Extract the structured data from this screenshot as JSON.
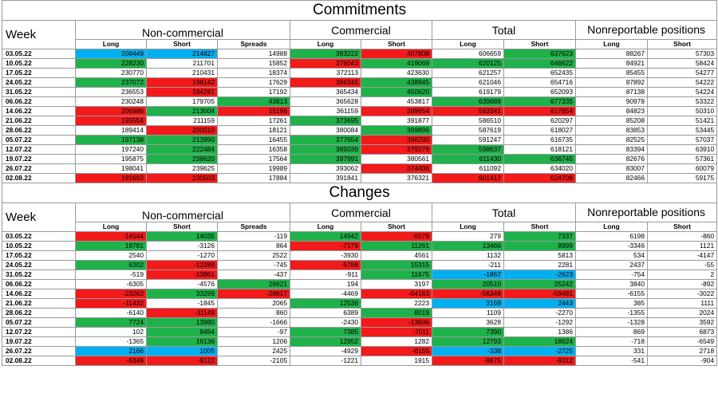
{
  "commitments": {
    "title": "Commitments",
    "headers": {
      "week": "Week",
      "noncommercial": "Non-commercial",
      "commercial": "Commercial",
      "total": "Total",
      "nonreportable": "Nonreportable positions",
      "long": "Long",
      "short": "Short",
      "spreads": "Spreads"
    },
    "rows": [
      {
        "week": "03.05.22",
        "nc_long": "208449",
        "nc_short": "214827",
        "spreads": "14988",
        "c_long": "383222",
        "c_short": "407808",
        "t_long": "606659",
        "t_short": "637623",
        "nr_long": "88267",
        "nr_short": "57303"
      },
      {
        "week": "10.05.22",
        "nc_long": "228230",
        "nc_short": "211701",
        "spreads": "15852",
        "c_long": "376043",
        "c_short": "419069",
        "t_long": "620125",
        "t_short": "646622",
        "nr_long": "84921",
        "nr_short": "58424"
      },
      {
        "week": "17.05.22",
        "nc_long": "230770",
        "nc_short": "210431",
        "spreads": "18374",
        "c_long": "372113",
        "c_short": "423630",
        "t_long": "621257",
        "t_short": "652435",
        "nr_long": "85455",
        "nr_short": "54277"
      },
      {
        "week": "24.05.22",
        "nc_long": "237072",
        "nc_short": "198142",
        "spreads": "17629",
        "c_long": "366345",
        "c_short": "438945",
        "t_long": "621046",
        "t_short": "654716",
        "nr_long": "87892",
        "nr_short": "54222"
      },
      {
        "week": "31.05.22",
        "nc_long": "236553",
        "nc_short": "184281",
        "spreads": "17192",
        "c_long": "365434",
        "c_short": "450620",
        "t_long": "619179",
        "t_short": "652093",
        "nr_long": "87138",
        "nr_short": "54224"
      },
      {
        "week": "06.06.22",
        "nc_long": "230248",
        "nc_short": "179705",
        "spreads": "43813",
        "c_long": "365628",
        "c_short": "453817",
        "t_long": "639689",
        "t_short": "677335",
        "nr_long": "90978",
        "nr_short": "53322"
      },
      {
        "week": "14.06.22",
        "nc_long": "206986",
        "nc_short": "213004",
        "spreads": "15196",
        "c_long": "361159",
        "c_short": "389654",
        "t_long": "583341",
        "t_short": "617854",
        "nr_long": "84823",
        "nr_short": "50310"
      },
      {
        "week": "21.06.22",
        "nc_long": "195554",
        "nc_short": "211159",
        "spreads": "17261",
        "c_long": "373695",
        "c_short": "391877",
        "t_long": "586510",
        "t_short": "620297",
        "nr_long": "85208",
        "nr_short": "51421"
      },
      {
        "week": "28.06.22",
        "nc_long": "189414",
        "nc_short": "200010",
        "spreads": "18121",
        "c_long": "380084",
        "c_short": "399896",
        "t_long": "587619",
        "t_short": "618027",
        "nr_long": "83853",
        "nr_short": "53445"
      },
      {
        "week": "05.07.22",
        "nc_long": "197138",
        "nc_short": "213990",
        "spreads": "16455",
        "c_long": "377654",
        "c_short": "386290",
        "t_long": "591247",
        "t_short": "616735",
        "nr_long": "82525",
        "nr_short": "57037"
      },
      {
        "week": "12.07.22",
        "nc_long": "197240",
        "nc_short": "222484",
        "spreads": "16358",
        "c_long": "385039",
        "c_short": "379279",
        "t_long": "598637",
        "t_short": "618121",
        "nr_long": "83394",
        "nr_short": "63910"
      },
      {
        "week": "19.07.22",
        "nc_long": "195875",
        "nc_short": "238620",
        "spreads": "17564",
        "c_long": "397991",
        "c_short": "380561",
        "t_long": "611430",
        "t_short": "636745",
        "nr_long": "82676",
        "nr_short": "57361"
      },
      {
        "week": "26.07.22",
        "nc_long": "198041",
        "nc_short": "239625",
        "spreads": "19989",
        "c_long": "393062",
        "c_short": "374406",
        "t_long": "611092",
        "t_short": "634020",
        "nr_long": "83007",
        "nr_short": "60079"
      },
      {
        "week": "02.08.22",
        "nc_long": "191692",
        "nc_short": "230503",
        "spreads": "17884",
        "c_long": "391841",
        "c_short": "376321",
        "t_long": "601417",
        "t_short": "624708",
        "nr_long": "82466",
        "nr_short": "59175"
      }
    ]
  },
  "changes": {
    "title": "Changes",
    "rows": [
      {
        "week": "03.05.22",
        "nc_long": "-14544",
        "nc_short": "14035",
        "spreads": "-119",
        "c_long": "14942",
        "c_short": "-6579",
        "t_long": "279",
        "t_short": "7337",
        "nr_long": "6198",
        "nr_short": "-860"
      },
      {
        "week": "10.05.22",
        "nc_long": "19781",
        "nc_short": "-3126",
        "spreads": "864",
        "c_long": "-7179",
        "c_short": "11261",
        "t_long": "13466",
        "t_short": "8999",
        "nr_long": "-3346",
        "nr_short": "1121"
      },
      {
        "week": "17.05.22",
        "nc_long": "2540",
        "nc_short": "-1270",
        "spreads": "2522",
        "c_long": "-3930",
        "c_short": "4561",
        "t_long": "1132",
        "t_short": "5813",
        "nr_long": "534",
        "nr_short": "-4147"
      },
      {
        "week": "24.05.22",
        "nc_long": "6302",
        "nc_short": "-12289",
        "spreads": "-745",
        "c_long": "-5768",
        "c_short": "15315",
        "t_long": "-211",
        "t_short": "2281",
        "nr_long": "2437",
        "nr_short": "-55"
      },
      {
        "week": "31.05.22",
        "nc_long": "-519",
        "nc_short": "-13861",
        "spreads": "-437",
        "c_long": "-911",
        "c_short": "11675",
        "t_long": "-1867",
        "t_short": "-2623",
        "nr_long": "-754",
        "nr_short": "2"
      },
      {
        "week": "06.06.22",
        "nc_long": "-6305",
        "nc_short": "-4576",
        "spreads": "26621",
        "c_long": "194",
        "c_short": "3197",
        "t_long": "20510",
        "t_short": "25242",
        "nr_long": "3840",
        "nr_short": "-892"
      },
      {
        "week": "14.06.22",
        "nc_long": "-23262",
        "nc_short": "33299",
        "spreads": "-28617",
        "c_long": "-4469",
        "c_short": "-64163",
        "t_long": "-56348",
        "t_short": "-59481",
        "nr_long": "-6155",
        "nr_short": "-3022"
      },
      {
        "week": "21.06.22",
        "nc_long": "-11432",
        "nc_short": "-1845",
        "spreads": "2065",
        "c_long": "12536",
        "c_short": "2223",
        "t_long": "3169",
        "t_short": "2443",
        "nr_long": "385",
        "nr_short": "1111"
      },
      {
        "week": "28.06.22",
        "nc_long": "-6140",
        "nc_short": "-11149",
        "spreads": "860",
        "c_long": "6389",
        "c_short": "8019",
        "t_long": "1109",
        "t_short": "-2270",
        "nr_long": "-1355",
        "nr_short": "2024"
      },
      {
        "week": "05.07.22",
        "nc_long": "7724",
        "nc_short": "13980",
        "spreads": "-1666",
        "c_long": "-2430",
        "c_short": "-13606",
        "t_long": "3628",
        "t_short": "-1292",
        "nr_long": "-1328",
        "nr_short": "3592"
      },
      {
        "week": "12.07.22",
        "nc_long": "102",
        "nc_short": "8494",
        "spreads": "-97",
        "c_long": "7385",
        "c_short": "-7011",
        "t_long": "7390",
        "t_short": "1386",
        "nr_long": "869",
        "nr_short": "6873"
      },
      {
        "week": "19.07.22",
        "nc_long": "-1365",
        "nc_short": "16136",
        "spreads": "1206",
        "c_long": "12952",
        "c_short": "1282",
        "t_long": "12793",
        "t_short": "18624",
        "nr_long": "-718",
        "nr_short": "-6549"
      },
      {
        "week": "26.07.22",
        "nc_long": "2166",
        "nc_short": "1005",
        "spreads": "2425",
        "c_long": "-4929",
        "c_short": "-6155",
        "t_long": "-338",
        "t_short": "-2725",
        "nr_long": "331",
        "nr_short": "2718"
      },
      {
        "week": "02.08.22",
        "nc_long": "-6349",
        "nc_short": "-9122",
        "spreads": "-2105",
        "c_long": "-1221",
        "c_short": "1915",
        "t_long": "-9675",
        "t_short": "-9312",
        "nr_long": "-541",
        "nr_short": "-904"
      }
    ]
  },
  "colors": {
    "green": "#1fb24a",
    "red": "#f21a1a",
    "blue": "#00b0f0"
  }
}
